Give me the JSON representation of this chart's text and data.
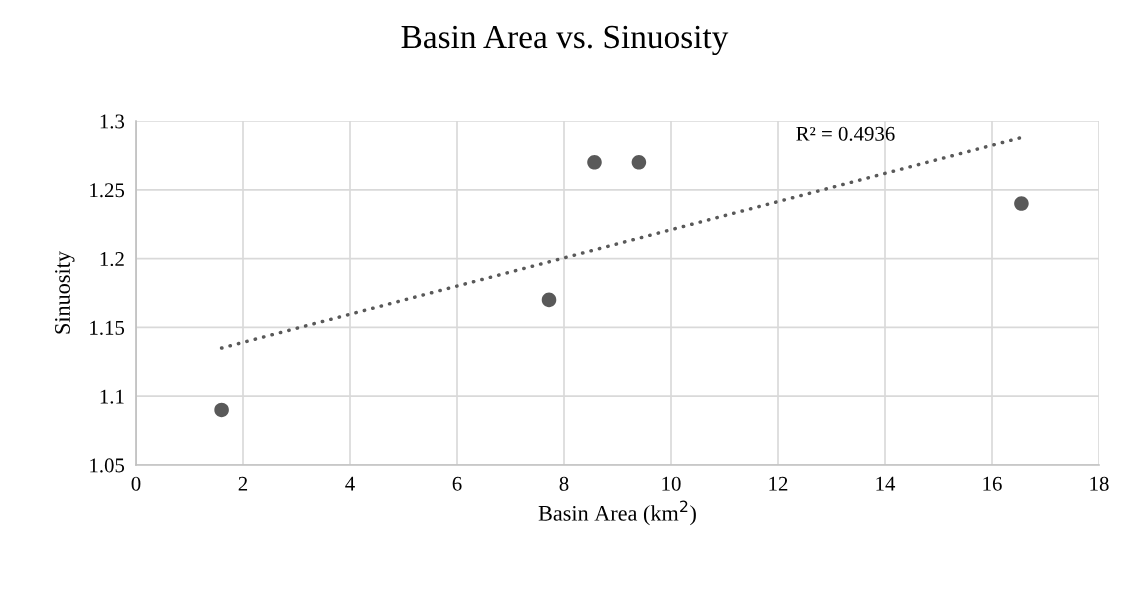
{
  "chart_data": {
    "type": "scatter",
    "title": "Basin Area vs. Sinuosity",
    "xlabel": "Basin Area (km$^{2}$)",
    "ylabel": "Sinuosity",
    "series": [
      {
        "color": "#595959",
        "marker": "circle",
        "x": [
          1.6,
          7.72,
          8.57,
          9.4,
          16.55
        ],
        "values": [
          1.09,
          1.17,
          1.27,
          1.27,
          1.24
        ]
      },
      {
        "type": "line",
        "color": "#595959",
        "line_style": "dotted",
        "marker": "none",
        "x": [
          1.6,
          16.55
        ],
        "values": [
          1.135,
          1.288
        ]
      }
    ],
    "annotations": [
      "R² = 0.4936"
    ],
    "xlim": [
      0,
      18
    ],
    "xticks": [
      0,
      2,
      4,
      6,
      8,
      10,
      12,
      14,
      16,
      18
    ],
    "ylim": [
      1.05,
      1.3
    ],
    "yticks": [
      {
        "value": 1.05,
        "label": "1.05"
      },
      {
        "value": 1.1,
        "label": "1.1"
      },
      {
        "value": 1.15,
        "label": "1.15"
      },
      {
        "value": 1.2,
        "label": "1.2"
      },
      {
        "value": 1.25,
        "label": "1.25"
      },
      {
        "value": 1.3,
        "label": "1.3"
      }
    ],
    "grid": true,
    "legend": false
  }
}
